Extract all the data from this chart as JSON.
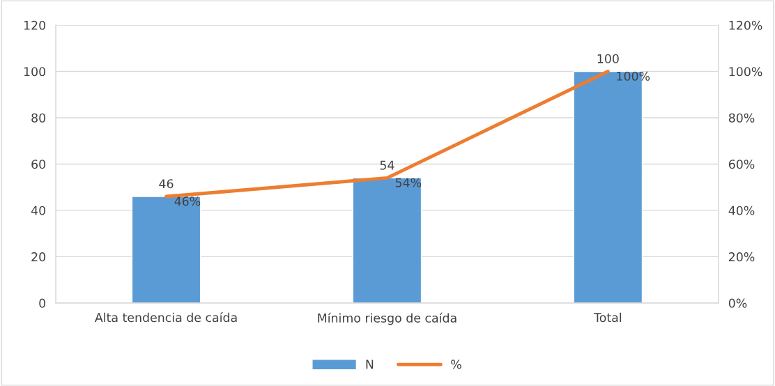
{
  "chart_data": {
    "type": "bar",
    "categories": [
      "Alta tendencia de caída",
      "Mínimo riesgo de caída",
      "Total"
    ],
    "series": [
      {
        "name": "N",
        "color": "#5b9bd5",
        "values": [
          46,
          54,
          100
        ],
        "value_labels": [
          "46",
          "54",
          "100"
        ]
      },
      {
        "name": "%",
        "type": "line",
        "axis": "y2",
        "color": "#ed7d31",
        "values": [
          46,
          54,
          100
        ],
        "value_labels": [
          "46%",
          "54%",
          "100%"
        ],
        "marker": "none"
      }
    ],
    "ylim": [
      0,
      120
    ],
    "yticks": [
      0,
      20,
      40,
      60,
      80,
      100,
      120
    ],
    "y2lim": [
      0,
      120
    ],
    "y2ticks": [
      {
        "value": 0,
        "label": "0%"
      },
      {
        "value": 20,
        "label": "20%"
      },
      {
        "value": 40,
        "label": "40%"
      },
      {
        "value": 60,
        "label": "60%"
      },
      {
        "value": 80,
        "label": "80%"
      },
      {
        "value": 100,
        "label": "100%"
      },
      {
        "value": 120,
        "label": "120%"
      }
    ],
    "grid": "y",
    "legend": "bottom"
  }
}
